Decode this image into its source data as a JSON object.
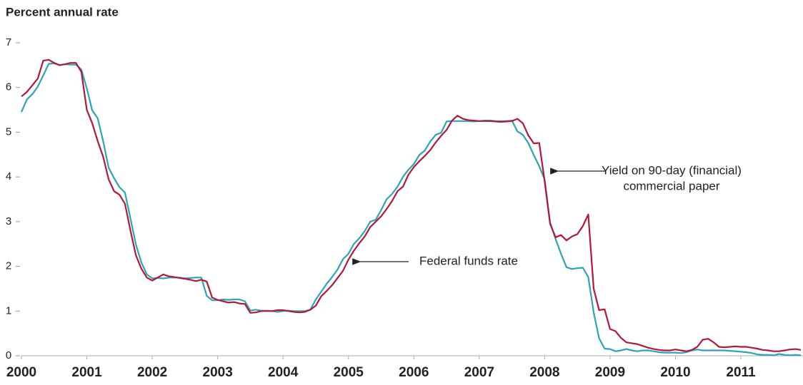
{
  "chart_data": {
    "type": "line",
    "ylabel": "Percent annual rate",
    "x": [
      2000,
      2000.083,
      2000.167,
      2000.25,
      2000.333,
      2000.417,
      2000.5,
      2000.583,
      2000.667,
      2000.75,
      2000.833,
      2000.917,
      2001,
      2001.083,
      2001.167,
      2001.25,
      2001.333,
      2001.417,
      2001.5,
      2001.583,
      2001.667,
      2001.75,
      2001.833,
      2001.917,
      2002,
      2002.083,
      2002.167,
      2002.25,
      2002.333,
      2002.417,
      2002.5,
      2002.583,
      2002.667,
      2002.75,
      2002.833,
      2002.917,
      2003,
      2003.083,
      2003.167,
      2003.25,
      2003.333,
      2003.417,
      2003.5,
      2003.583,
      2003.667,
      2003.75,
      2003.833,
      2003.917,
      2004,
      2004.083,
      2004.167,
      2004.25,
      2004.333,
      2004.417,
      2004.5,
      2004.583,
      2004.667,
      2004.75,
      2004.833,
      2004.917,
      2005,
      2005.083,
      2005.167,
      2005.25,
      2005.333,
      2005.417,
      2005.5,
      2005.583,
      2005.667,
      2005.75,
      2005.833,
      2005.917,
      2006,
      2006.083,
      2006.167,
      2006.25,
      2006.333,
      2006.417,
      2006.5,
      2006.583,
      2006.667,
      2006.75,
      2006.833,
      2006.917,
      2007,
      2007.083,
      2007.167,
      2007.25,
      2007.333,
      2007.417,
      2007.5,
      2007.583,
      2007.667,
      2007.75,
      2007.833,
      2007.917,
      2008,
      2008.083,
      2008.167,
      2008.25,
      2008.333,
      2008.417,
      2008.5,
      2008.583,
      2008.667,
      2008.75,
      2008.833,
      2008.917,
      2009,
      2009.083,
      2009.167,
      2009.25,
      2009.333,
      2009.417,
      2009.5,
      2009.583,
      2009.667,
      2009.75,
      2009.833,
      2009.917,
      2010,
      2010.083,
      2010.167,
      2010.25,
      2010.333,
      2010.417,
      2010.5,
      2010.583,
      2010.667,
      2010.75,
      2010.833,
      2010.917,
      2011,
      2011.083,
      2011.167,
      2011.25,
      2011.333,
      2011.417,
      2011.5,
      2011.583,
      2011.667,
      2011.75,
      2011.833,
      2011.917
    ],
    "series": [
      {
        "color": "#2aa5b8",
        "values": [
          5.45,
          5.73,
          5.85,
          6.02,
          6.27,
          6.53,
          6.54,
          6.5,
          6.52,
          6.51,
          6.51,
          6.4,
          5.98,
          5.49,
          5.31,
          4.8,
          4.21,
          3.97,
          3.77,
          3.65,
          3.07,
          2.49,
          2.09,
          1.82,
          1.73,
          1.74,
          1.73,
          1.75,
          1.75,
          1.75,
          1.73,
          1.74,
          1.75,
          1.75,
          1.34,
          1.24,
          1.24,
          1.26,
          1.25,
          1.26,
          1.26,
          1.22,
          1.01,
          1.03,
          1.01,
          1.01,
          1.0,
          0.98,
          1.0,
          1.01,
          1.0,
          1.0,
          1.0,
          1.03,
          1.26,
          1.43,
          1.61,
          1.76,
          1.93,
          2.16,
          2.28,
          2.5,
          2.63,
          2.79,
          3.0,
          3.04,
          3.26,
          3.5,
          3.62,
          3.78,
          4.0,
          4.16,
          4.29,
          4.49,
          4.59,
          4.79,
          4.94,
          4.99,
          5.24,
          5.25,
          5.25,
          5.25,
          5.25,
          5.24,
          5.25,
          5.26,
          5.26,
          5.25,
          5.25,
          5.25,
          5.26,
          5.02,
          4.94,
          4.76,
          4.49,
          4.24,
          3.94,
          2.98,
          2.61,
          2.28,
          1.98,
          1.94,
          1.96,
          1.97,
          1.76,
          0.97,
          0.39,
          0.16,
          0.15,
          0.1,
          0.12,
          0.15,
          0.12,
          0.1,
          0.12,
          0.12,
          0.1,
          0.08,
          0.07,
          0.07,
          0.07,
          0.06,
          0.08,
          0.12,
          0.14,
          0.12,
          0.12,
          0.12,
          0.12,
          0.12,
          0.11,
          0.1,
          0.09,
          0.08,
          0.06,
          0.03,
          0.02,
          0.02,
          0.01,
          0.04,
          0.02,
          0.01,
          0.02,
          0.01
        ]
      },
      {
        "color": "#b5173a",
        "values": [
          5.8,
          5.9,
          6.05,
          6.2,
          6.6,
          6.62,
          6.55,
          6.5,
          6.52,
          6.55,
          6.55,
          6.35,
          5.5,
          5.2,
          4.8,
          4.45,
          3.95,
          3.68,
          3.6,
          3.4,
          2.8,
          2.25,
          1.95,
          1.75,
          1.68,
          1.75,
          1.82,
          1.78,
          1.76,
          1.74,
          1.72,
          1.7,
          1.67,
          1.7,
          1.66,
          1.3,
          1.25,
          1.22,
          1.19,
          1.2,
          1.17,
          1.16,
          0.96,
          0.97,
          1.0,
          1.0,
          1.0,
          1.02,
          1.02,
          1.0,
          0.98,
          0.97,
          0.98,
          1.03,
          1.12,
          1.33,
          1.45,
          1.58,
          1.74,
          1.9,
          2.15,
          2.35,
          2.52,
          2.67,
          2.88,
          3.0,
          3.12,
          3.28,
          3.46,
          3.68,
          3.78,
          4.05,
          4.22,
          4.35,
          4.47,
          4.6,
          4.77,
          4.92,
          5.05,
          5.26,
          5.37,
          5.3,
          5.27,
          5.26,
          5.25,
          5.25,
          5.25,
          5.24,
          5.23,
          5.24,
          5.25,
          5.3,
          5.2,
          4.93,
          4.75,
          4.76,
          3.9,
          2.95,
          2.65,
          2.7,
          2.58,
          2.67,
          2.72,
          2.9,
          3.16,
          1.5,
          1.02,
          1.04,
          0.6,
          0.55,
          0.4,
          0.3,
          0.28,
          0.26,
          0.22,
          0.18,
          0.15,
          0.13,
          0.12,
          0.12,
          0.14,
          0.12,
          0.1,
          0.13,
          0.2,
          0.36,
          0.38,
          0.3,
          0.2,
          0.19,
          0.2,
          0.21,
          0.2,
          0.2,
          0.18,
          0.16,
          0.13,
          0.12,
          0.1,
          0.1,
          0.12,
          0.14,
          0.15,
          0.13
        ]
      }
    ],
    "annotations": [
      {
        "text": [
          "Yield on 90-day (financial)",
          "commercial paper"
        ]
      },
      {
        "text": [
          "Federal funds rate"
        ]
      }
    ],
    "xlim": [
      2000,
      2011.95
    ],
    "xticks": [
      2000,
      2001,
      2002,
      2003,
      2004,
      2005,
      2006,
      2007,
      2008,
      2009,
      2010,
      2011
    ],
    "ylim": [
      0,
      7
    ],
    "yticks": [
      0,
      1,
      2,
      3,
      4,
      5,
      6,
      7
    ]
  }
}
